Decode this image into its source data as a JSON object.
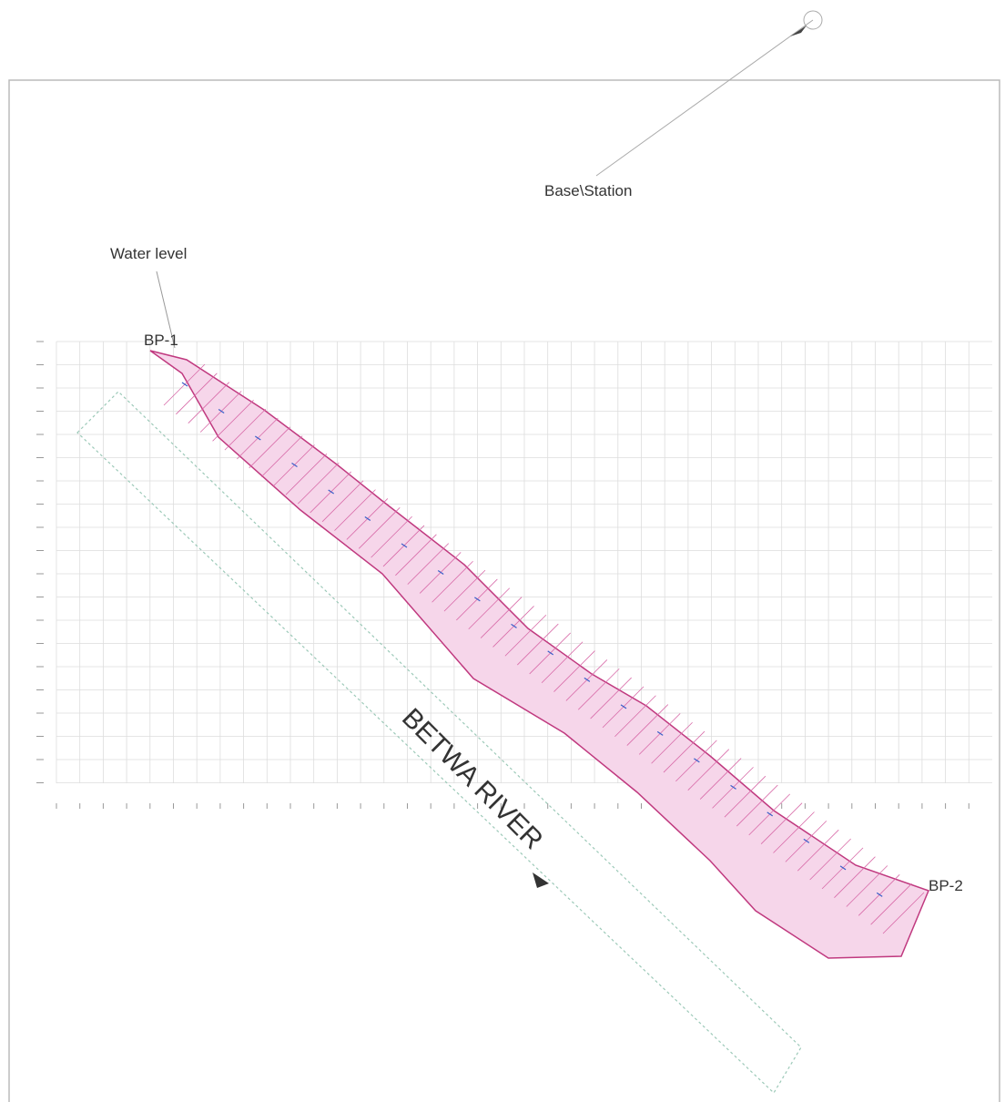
{
  "labels": {
    "base_station": "Base\\Station",
    "water_level": "Water level",
    "bp1": "BP-1",
    "bp2": "BP-2",
    "river": "BETWA RIVER"
  }
}
